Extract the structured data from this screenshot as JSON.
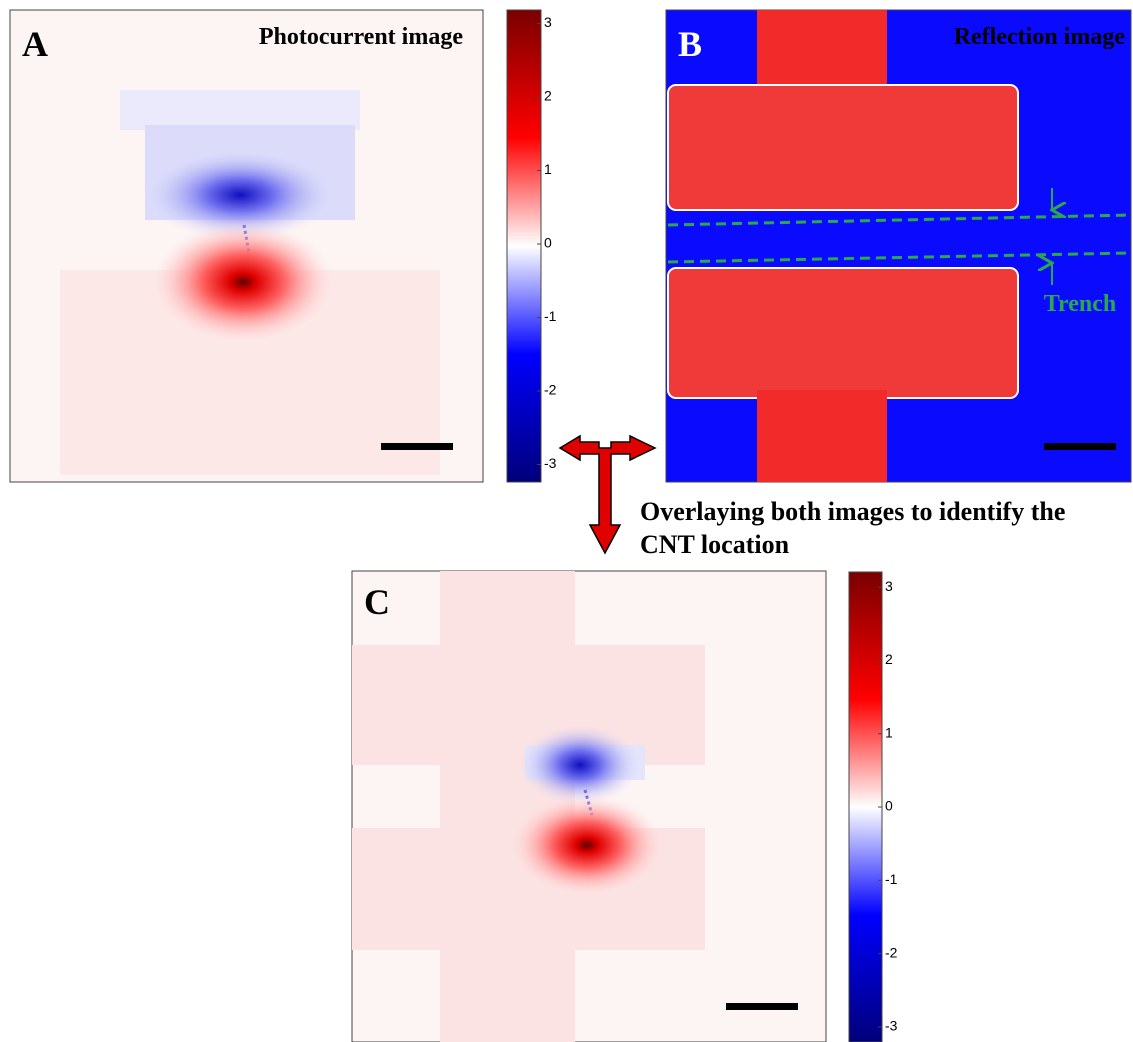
{
  "panels": [
    {
      "letter": "A",
      "title": "Photocurrent image"
    },
    {
      "letter": "B",
      "title": "Reflection image",
      "annotation": "Trench"
    },
    {
      "letter": "C"
    }
  ],
  "colorbar_ticks": [
    3,
    2,
    1,
    0,
    -1,
    -2,
    -3
  ],
  "caption": [
    "Overlaying both images to identify the",
    "CNT location"
  ]
}
